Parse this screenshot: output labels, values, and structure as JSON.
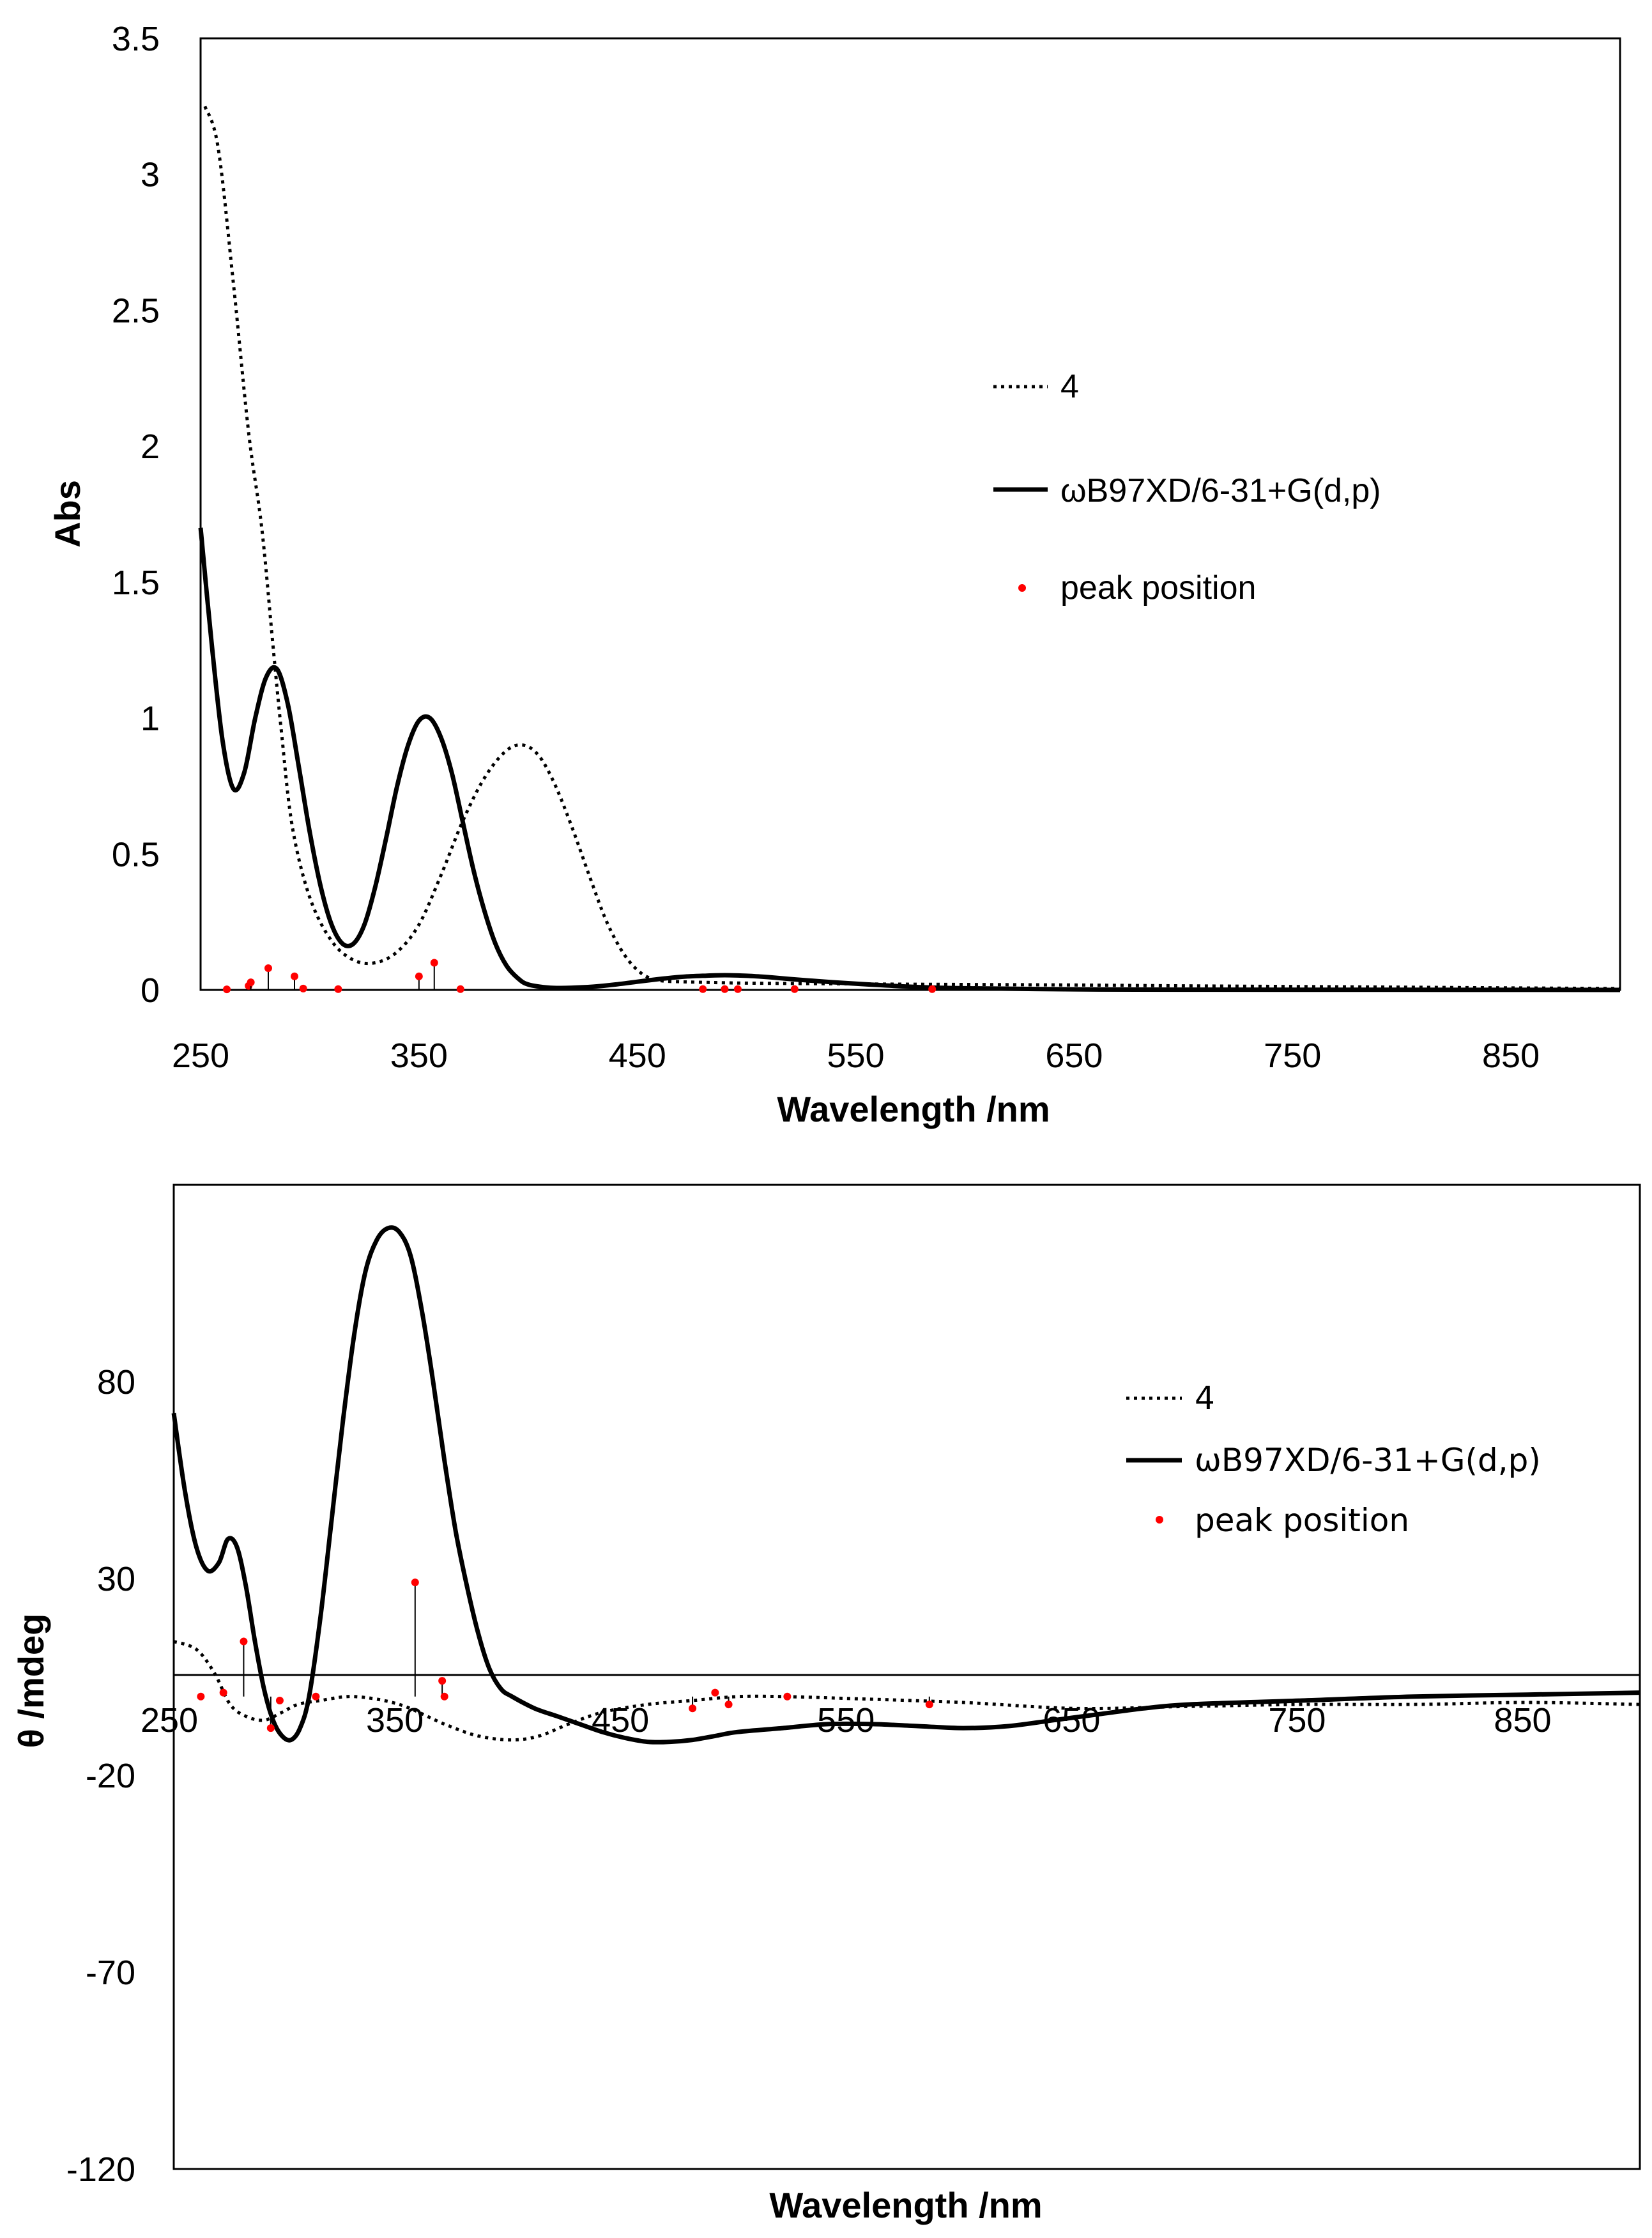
{
  "chart_data": [
    {
      "type": "line",
      "title": "",
      "xlabel": "Wavelength /nm",
      "ylabel": "Abs",
      "xlim": [
        250,
        900
      ],
      "ylim": [
        0,
        3.5
      ],
      "grid": false,
      "legend_position": "right",
      "x_ticks": [
        "250",
        "350",
        "450",
        "550",
        "650",
        "750",
        "850"
      ],
      "y_ticks": [
        "0",
        "0.5",
        "1",
        "1.5",
        "2",
        "2.5",
        "3",
        "3.5"
      ],
      "legend": [
        {
          "label": "4",
          "style": "dotted"
        },
        {
          "label": "ωB97XD/6-31+G(d,p)",
          "style": "solid"
        },
        {
          "label": "peak position",
          "style": "marker"
        }
      ],
      "series": [
        {
          "name": "4",
          "style": "dotted",
          "x": [
            252,
            258,
            265,
            272,
            278,
            283,
            287,
            292,
            300,
            310,
            320,
            330,
            340,
            350,
            360,
            370,
            380,
            390,
            398,
            405,
            412,
            420,
            428,
            436,
            444,
            452,
            460,
            470,
            480,
            500,
            550,
            600,
            650,
            700,
            800,
            900
          ],
          "y": [
            3.25,
            3.1,
            2.6,
            2.05,
            1.7,
            1.28,
            0.95,
            0.6,
            0.34,
            0.18,
            0.11,
            0.1,
            0.14,
            0.24,
            0.42,
            0.62,
            0.78,
            0.88,
            0.9,
            0.86,
            0.76,
            0.6,
            0.42,
            0.25,
            0.13,
            0.06,
            0.035,
            0.03,
            0.028,
            0.025,
            0.022,
            0.02,
            0.018,
            0.015,
            0.01,
            0.005
          ]
        },
        {
          "name": "ωB97XD/6-31+G(d,p)",
          "style": "solid",
          "x": [
            250,
            255,
            260,
            265,
            270,
            275,
            280,
            285,
            290,
            295,
            300,
            305,
            310,
            315,
            320,
            325,
            330,
            335,
            340,
            345,
            350,
            355,
            360,
            365,
            370,
            375,
            380,
            385,
            390,
            395,
            400,
            410,
            420,
            430,
            440,
            450,
            460,
            470,
            480,
            490,
            500,
            510,
            520,
            540,
            560,
            580,
            600,
            650,
            700,
            900
          ],
          "y": [
            1.7,
            1.28,
            0.92,
            0.74,
            0.8,
            1.0,
            1.15,
            1.18,
            1.05,
            0.82,
            0.58,
            0.38,
            0.24,
            0.17,
            0.17,
            0.24,
            0.38,
            0.56,
            0.75,
            0.9,
            0.99,
            1.0,
            0.93,
            0.8,
            0.62,
            0.44,
            0.29,
            0.17,
            0.09,
            0.045,
            0.02,
            0.008,
            0.008,
            0.012,
            0.02,
            0.03,
            0.04,
            0.048,
            0.052,
            0.054,
            0.052,
            0.047,
            0.04,
            0.028,
            0.018,
            0.01,
            0.006,
            0.002,
            0.001,
            0
          ]
        }
      ],
      "peaks": [
        {
          "x": 262,
          "y": 0.002
        },
        {
          "x": 272,
          "y": 0.015
        },
        {
          "x": 273,
          "y": 0.028
        },
        {
          "x": 281,
          "y": 0.08
        },
        {
          "x": 293,
          "y": 0.05
        },
        {
          "x": 297,
          "y": 0.005
        },
        {
          "x": 313,
          "y": 0.003
        },
        {
          "x": 350,
          "y": 0.05
        },
        {
          "x": 357,
          "y": 0.1
        },
        {
          "x": 369,
          "y": 0.003
        },
        {
          "x": 480,
          "y": 0.003
        },
        {
          "x": 490,
          "y": 0.003
        },
        {
          "x": 496,
          "y": 0.003
        },
        {
          "x": 522,
          "y": 0.003
        },
        {
          "x": 585,
          "y": 0.003
        }
      ]
    },
    {
      "type": "line",
      "title": "",
      "xlabel": "Wavelength /nm",
      "ylabel": "θ /mdeg",
      "xlim": [
        250,
        900
      ],
      "ylim": [
        -120,
        130
      ],
      "grid": false,
      "legend_position": "right",
      "x_ticks": [
        "250",
        "350",
        "450",
        "550",
        "650",
        "750",
        "850"
      ],
      "y_ticks": [
        "-120",
        "-70",
        "-20",
        "30",
        "80"
      ],
      "legend": [
        {
          "label": "4",
          "style": "dotted"
        },
        {
          "label": "ωB97XD/6-31+G(d,p)",
          "style": "solid"
        },
        {
          "label": "peak position",
          "style": "marker"
        }
      ],
      "series": [
        {
          "name": "4",
          "style": "dotted",
          "x": [
            250,
            260,
            268,
            275,
            282,
            290,
            298,
            305,
            315,
            330,
            350,
            370,
            385,
            400,
            412,
            425,
            440,
            460,
            480,
            500,
            520,
            550,
            600,
            650,
            700,
            750,
            800,
            850,
            900
          ],
          "y": [
            14,
            12,
            6,
            -2,
            -5,
            -6,
            -4,
            -2,
            -1,
            0,
            -2,
            -7,
            -10,
            -11,
            -10,
            -7,
            -4,
            -2,
            -1,
            0,
            0,
            -0.5,
            -1.5,
            -3,
            -2.5,
            -2,
            -2,
            -1.5,
            -2
          ]
        },
        {
          "name": "ωB97XD/6-31+G(d,p)",
          "style": "solid",
          "x": [
            250,
            255,
            260,
            265,
            270,
            274,
            278,
            282,
            286,
            290,
            294,
            298,
            302,
            306,
            310,
            315,
            320,
            325,
            330,
            335,
            340,
            345,
            350,
            355,
            360,
            365,
            370,
            375,
            380,
            385,
            390,
            395,
            400,
            410,
            420,
            430,
            440,
            450,
            460,
            470,
            480,
            490,
            500,
            520,
            540,
            560,
            580,
            600,
            620,
            640,
            660,
            680,
            700,
            750,
            800,
            850,
            900
          ],
          "y": [
            72,
            52,
            38,
            32,
            34,
            40,
            38,
            28,
            14,
            2,
            -6,
            -10,
            -11,
            -8,
            0,
            20,
            45,
            70,
            92,
            108,
            116,
            119,
            118,
            112,
            98,
            80,
            60,
            42,
            28,
            16,
            7,
            2,
            0,
            -3,
            -5,
            -7,
            -9,
            -10.5,
            -11.5,
            -11.5,
            -11,
            -10,
            -9,
            -8,
            -7,
            -7,
            -7.5,
            -8,
            -7.5,
            -6,
            -4.5,
            -3,
            -2,
            -1,
            0,
            0.5,
            1
          ]
        }
      ],
      "peaks": [
        {
          "x": 262,
          "y": 0
        },
        {
          "x": 272,
          "y": 1
        },
        {
          "x": 281,
          "y": 14
        },
        {
          "x": 293,
          "y": -8
        },
        {
          "x": 297,
          "y": -1
        },
        {
          "x": 313,
          "y": 0
        },
        {
          "x": 357,
          "y": 29
        },
        {
          "x": 369,
          "y": 4
        },
        {
          "x": 370,
          "y": 0
        },
        {
          "x": 480,
          "y": -3
        },
        {
          "x": 490,
          "y": 1
        },
        {
          "x": 496,
          "y": -2
        },
        {
          "x": 522,
          "y": 0
        },
        {
          "x": 585,
          "y": -2
        }
      ]
    }
  ],
  "colors": {
    "line": "#000000",
    "peak_marker": "#ff0000",
    "background": "#ffffff"
  }
}
